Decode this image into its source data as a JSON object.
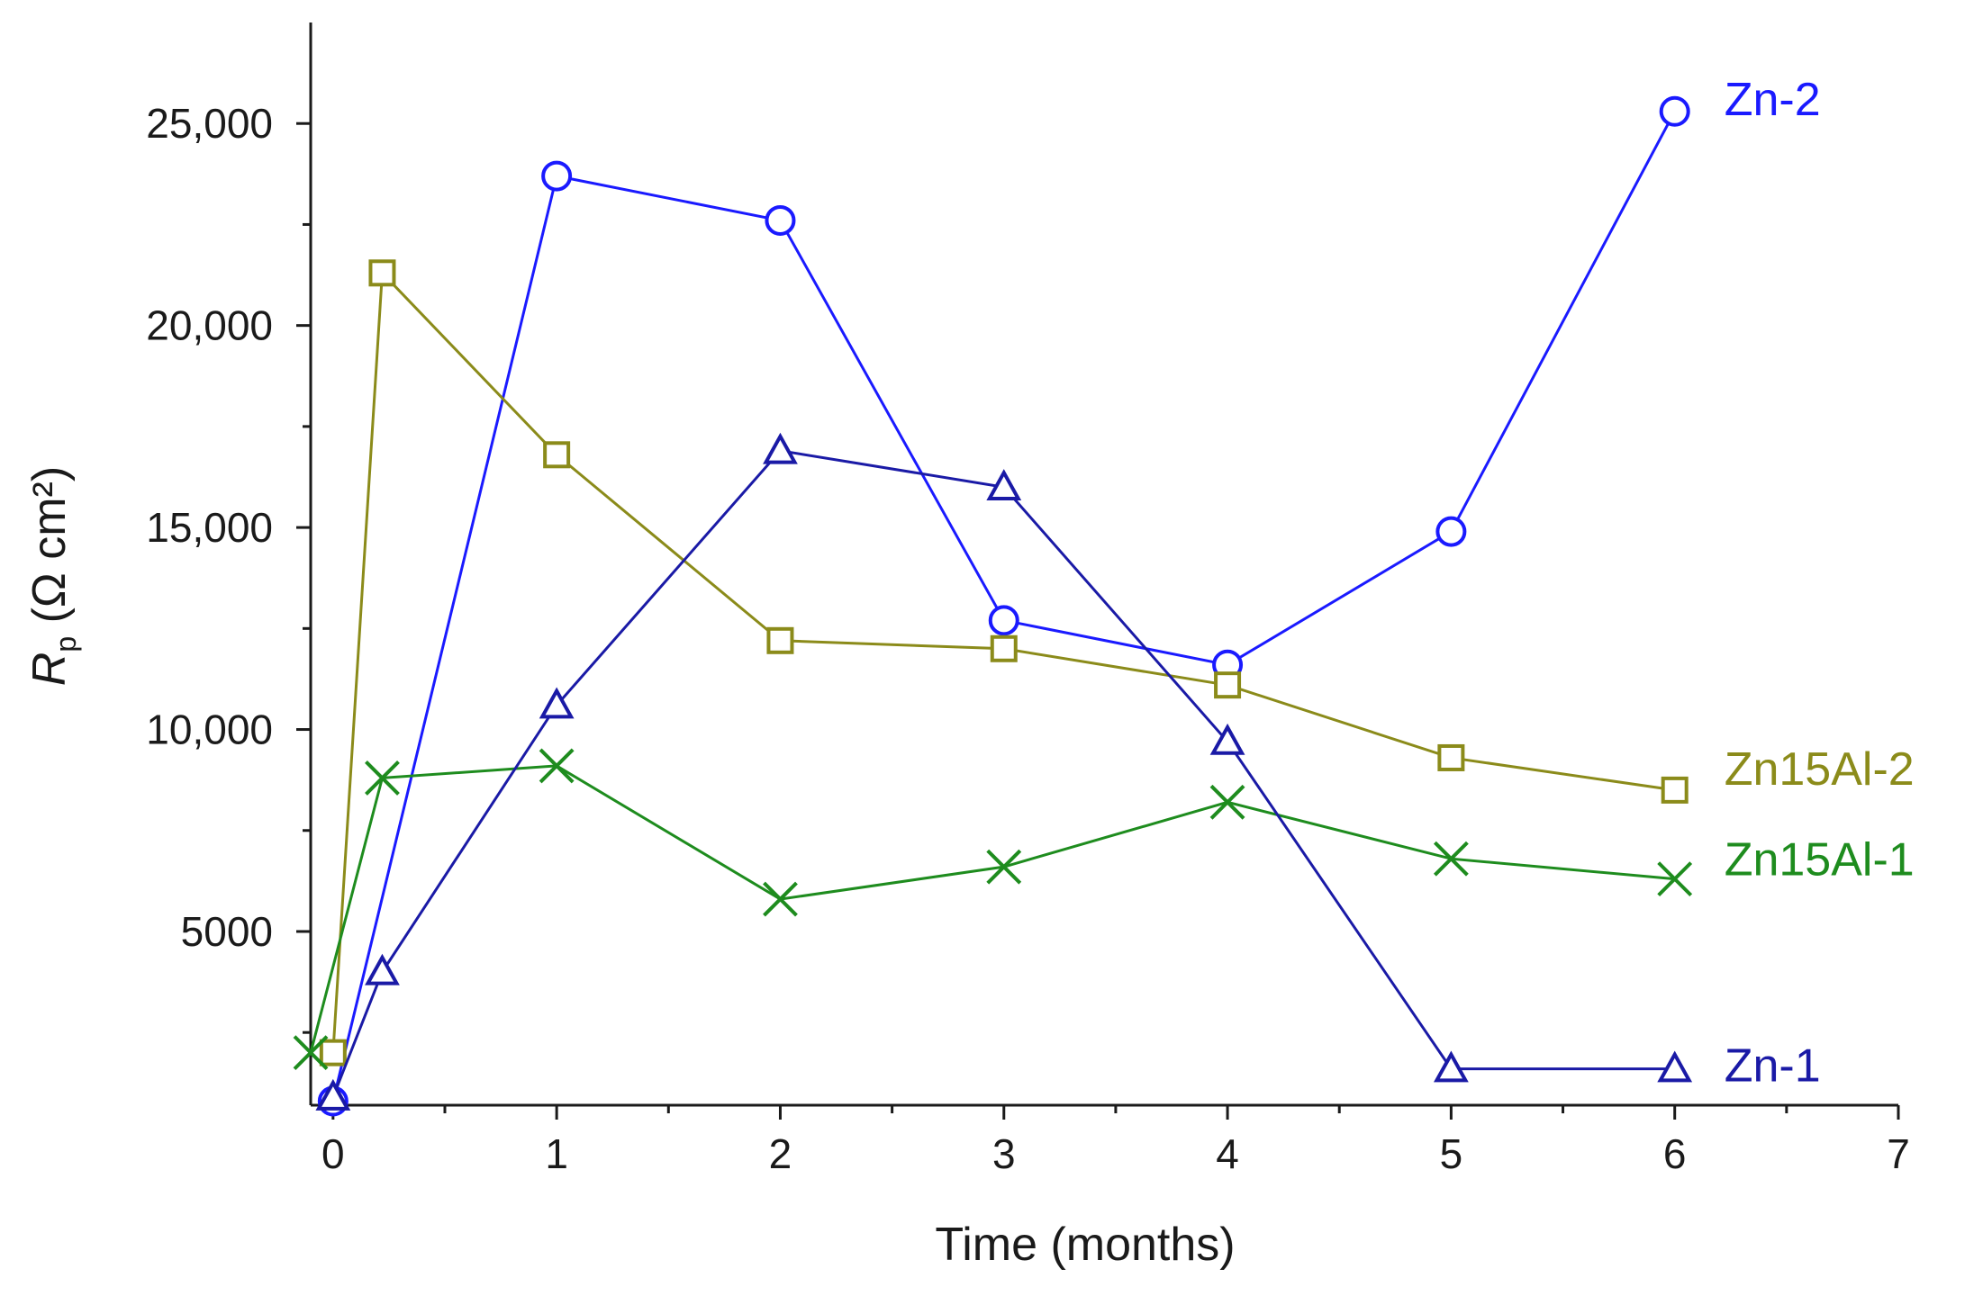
{
  "chart_data": {
    "type": "line",
    "title": "",
    "xlabel": "Time (months)",
    "ylabel": {
      "symbol": "R",
      "subscript": "p",
      "units": " (Ω cm²)"
    },
    "xlim": [
      -0.1,
      7
    ],
    "ylim": [
      700,
      27500
    ],
    "x_ticks": [
      0,
      1,
      2,
      3,
      4,
      5,
      6,
      7
    ],
    "x_tick_labels": [
      "0",
      "1",
      "2",
      "3",
      "4",
      "5",
      "6",
      "7"
    ],
    "x_minor_ticks": [
      0.5,
      1.5,
      2.5,
      3.5,
      4.5,
      5.5,
      6.5
    ],
    "y_ticks": [
      5000,
      10000,
      15000,
      20000,
      25000
    ],
    "y_tick_labels": [
      "5000",
      "10,000",
      "15,000",
      "20,000",
      "25,000"
    ],
    "y_minor_ticks": [
      2500,
      7500,
      12500,
      17500,
      22500
    ],
    "grid": false,
    "legend": "inline labels at the right end of each series",
    "series": [
      {
        "name": "Zn-2",
        "color": "#1a1aff",
        "marker": "circle",
        "x": [
          0,
          1,
          2,
          3,
          4,
          5,
          6
        ],
        "y": [
          800,
          23700,
          22600,
          12700,
          11600,
          14900,
          25300
        ]
      },
      {
        "name": "Zn15Al-2",
        "color": "#8b8b1a",
        "marker": "square",
        "x": [
          0,
          0.22,
          1,
          2,
          3,
          4,
          5,
          6
        ],
        "y": [
          2000,
          21300,
          16800,
          12200,
          12000,
          11100,
          9300,
          8500
        ]
      },
      {
        "name": "Zn15Al-1",
        "color": "#1e8c1e",
        "marker": "x",
        "x": [
          -0.1,
          0.22,
          1,
          2,
          3,
          4,
          5,
          6
        ],
        "y": [
          2000,
          8800,
          9100,
          5800,
          6600,
          8200,
          6800,
          6300
        ]
      },
      {
        "name": "Zn-1",
        "color": "#1a1aa6",
        "marker": "triangle",
        "x": [
          0,
          0.22,
          1,
          2,
          3,
          4,
          5,
          6
        ],
        "y": [
          900,
          4000,
          10600,
          16900,
          16000,
          9700,
          1600,
          1600
        ]
      }
    ]
  }
}
